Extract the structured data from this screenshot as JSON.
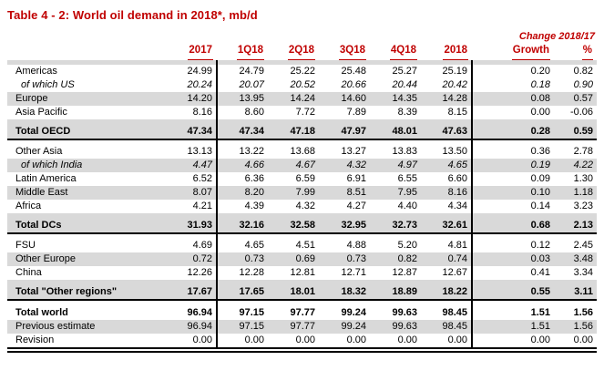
{
  "title": "Table 4 - 2: World oil demand in 2018*, mb/d",
  "colors": {
    "accent_red": "#C00000",
    "row_shade": "#D9D9D9",
    "rule_black": "#000000"
  },
  "table": {
    "change_header": "Change 2018/17",
    "columns": [
      "2017",
      "1Q18",
      "2Q18",
      "3Q18",
      "4Q18",
      "2018",
      "Growth",
      "%"
    ],
    "rows": [
      {
        "type": "spacer",
        "shaded": true
      },
      {
        "type": "data",
        "style": "normal",
        "shaded": false,
        "label": "Americas",
        "values": [
          "24.99",
          "24.79",
          "25.22",
          "25.48",
          "25.27",
          "25.19",
          "0.20",
          "0.82"
        ]
      },
      {
        "type": "data",
        "style": "subitem",
        "shaded": false,
        "label": "of which US",
        "values": [
          "20.24",
          "20.07",
          "20.52",
          "20.66",
          "20.44",
          "20.42",
          "0.18",
          "0.90"
        ]
      },
      {
        "type": "data",
        "style": "normal",
        "shaded": true,
        "label": "Europe",
        "values": [
          "14.20",
          "13.95",
          "14.24",
          "14.60",
          "14.35",
          "14.28",
          "0.08",
          "0.57"
        ]
      },
      {
        "type": "data",
        "style": "normal",
        "shaded": false,
        "label": "Asia Pacific",
        "values": [
          "8.16",
          "8.60",
          "7.72",
          "7.89",
          "8.39",
          "8.15",
          "0.00",
          "-0.06"
        ]
      },
      {
        "type": "spacer",
        "shaded": true
      },
      {
        "type": "data",
        "style": "total",
        "shaded": true,
        "label": "Total OECD",
        "values": [
          "47.34",
          "47.34",
          "47.18",
          "47.97",
          "48.01",
          "47.63",
          "0.28",
          "0.59"
        ]
      },
      {
        "type": "rule"
      },
      {
        "type": "spacer",
        "shaded": false
      },
      {
        "type": "data",
        "style": "normal",
        "shaded": false,
        "label": "Other Asia",
        "values": [
          "13.13",
          "13.22",
          "13.68",
          "13.27",
          "13.83",
          "13.50",
          "0.36",
          "2.78"
        ]
      },
      {
        "type": "data",
        "style": "subitem",
        "shaded": true,
        "label": "of which India",
        "values": [
          "4.47",
          "4.66",
          "4.67",
          "4.32",
          "4.97",
          "4.65",
          "0.19",
          "4.22"
        ]
      },
      {
        "type": "data",
        "style": "normal",
        "shaded": false,
        "label": "Latin America",
        "values": [
          "6.52",
          "6.36",
          "6.59",
          "6.91",
          "6.55",
          "6.60",
          "0.09",
          "1.30"
        ]
      },
      {
        "type": "data",
        "style": "normal",
        "shaded": true,
        "label": "Middle East",
        "values": [
          "8.07",
          "8.20",
          "7.99",
          "8.51",
          "7.95",
          "8.16",
          "0.10",
          "1.18"
        ]
      },
      {
        "type": "data",
        "style": "normal",
        "shaded": false,
        "label": "Africa",
        "values": [
          "4.21",
          "4.39",
          "4.32",
          "4.27",
          "4.40",
          "4.34",
          "0.14",
          "3.23"
        ]
      },
      {
        "type": "spacer",
        "shaded": true
      },
      {
        "type": "data",
        "style": "total",
        "shaded": true,
        "label": "Total DCs",
        "values": [
          "31.93",
          "32.16",
          "32.58",
          "32.95",
          "32.73",
          "32.61",
          "0.68",
          "2.13"
        ]
      },
      {
        "type": "rule"
      },
      {
        "type": "spacer",
        "shaded": false
      },
      {
        "type": "data",
        "style": "normal",
        "shaded": false,
        "label": "FSU",
        "values": [
          "4.69",
          "4.65",
          "4.51",
          "4.88",
          "5.20",
          "4.81",
          "0.12",
          "2.45"
        ]
      },
      {
        "type": "data",
        "style": "normal",
        "shaded": true,
        "label": "Other Europe",
        "values": [
          "0.72",
          "0.73",
          "0.69",
          "0.73",
          "0.82",
          "0.74",
          "0.03",
          "3.48"
        ]
      },
      {
        "type": "data",
        "style": "normal",
        "shaded": false,
        "label": "China",
        "values": [
          "12.26",
          "12.28",
          "12.81",
          "12.71",
          "12.87",
          "12.67",
          "0.41",
          "3.34"
        ]
      },
      {
        "type": "spacer",
        "shaded": true
      },
      {
        "type": "data",
        "style": "total",
        "shaded": true,
        "label": "Total \"Other regions\"",
        "values": [
          "17.67",
          "17.65",
          "18.01",
          "18.32",
          "18.89",
          "18.22",
          "0.55",
          "3.11"
        ]
      },
      {
        "type": "rule"
      },
      {
        "type": "spacer",
        "shaded": false
      },
      {
        "type": "data",
        "style": "total",
        "shaded": false,
        "label": "Total world",
        "values": [
          "96.94",
          "97.15",
          "97.77",
          "99.24",
          "99.63",
          "98.45",
          "1.51",
          "1.56"
        ]
      },
      {
        "type": "data",
        "style": "normal",
        "shaded": true,
        "label": "Previous estimate",
        "values": [
          "96.94",
          "97.15",
          "97.77",
          "99.24",
          "99.63",
          "98.45",
          "1.51",
          "1.56"
        ]
      },
      {
        "type": "data",
        "style": "normal",
        "shaded": false,
        "label": "Revision",
        "values": [
          "0.00",
          "0.00",
          "0.00",
          "0.00",
          "0.00",
          "0.00",
          "0.00",
          "0.00"
        ]
      },
      {
        "type": "dblrule"
      }
    ]
  }
}
